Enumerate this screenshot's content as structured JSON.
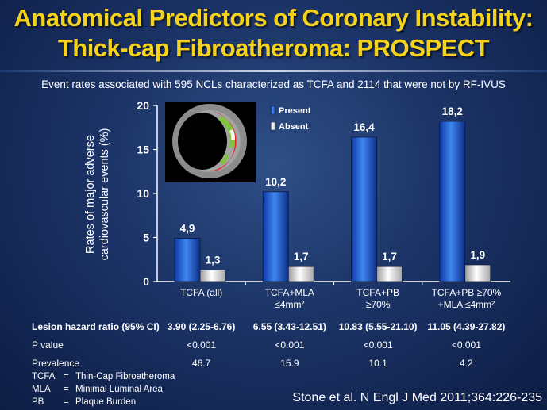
{
  "title_line1": "Anatomical Predictors of Coronary Instability:",
  "title_line2": "Thick-cap Fibroatheroma: PROSPECT",
  "subtitle": "Event rates associated with 595 NCLs characterized as TCFA and 2114 that were not by RF-IVUS",
  "colors": {
    "title": "#f4d31a",
    "present": "#1f5fd6",
    "absent": "#ececec",
    "background": "#1b3366"
  },
  "chart_data": {
    "type": "bar",
    "ylabel_line1": "Rates of major adverse",
    "ylabel_line2": "cardiovascular events (%)",
    "ylim": [
      0,
      20
    ],
    "yticks": [
      "0",
      "5",
      "10",
      "15",
      "20"
    ],
    "categories": [
      [
        "TCFA (all)"
      ],
      [
        "TCFA+MLA",
        "≤4mm²"
      ],
      [
        "TCFA+PB",
        "≥70%"
      ],
      [
        "TCFA+PB ≥70%",
        "+MLA ≤4mm²"
      ]
    ],
    "series": [
      {
        "name": "Present",
        "values": [
          4.9,
          10.2,
          16.4,
          18.2
        ],
        "labels": [
          "4,9",
          "10,2",
          "16,4",
          "18,2"
        ]
      },
      {
        "name": "Absent",
        "values": [
          1.3,
          1.7,
          1.7,
          1.9
        ],
        "labels": [
          "1,3",
          "1,7",
          "1,7",
          "1,9"
        ]
      }
    ],
    "legend_position": "top-center",
    "grid": false
  },
  "table": [
    {
      "label": "Lesion hazard ratio (95% CI)",
      "values": [
        "3.90 (2.25-6.76)",
        "6.55 (3.43-12.51)",
        "10.83 (5.55-21.10)",
        "11.05 (4.39-27.82)"
      ]
    },
    {
      "label": "P value",
      "values": [
        "<0.001",
        "<0.001",
        "<0.001",
        "<0.001"
      ]
    },
    {
      "label": "Prevalence",
      "values": [
        "46.7",
        "15.9",
        "10.1",
        "4.2"
      ]
    }
  ],
  "abbreviations": [
    {
      "key": "TCFA",
      "eq": "=",
      "text": "Thin-Cap Fibroatheroma"
    },
    {
      "key": "MLA",
      "eq": "=",
      "text": "Minimal Luminal Area"
    },
    {
      "key": "PB",
      "eq": "=",
      "text": "Plaque Burden"
    }
  ],
  "citation": "Stone et al. N Engl J Med 2011;364:226-235",
  "ivus_image": {
    "icon": "ivus-cross-section-image"
  }
}
